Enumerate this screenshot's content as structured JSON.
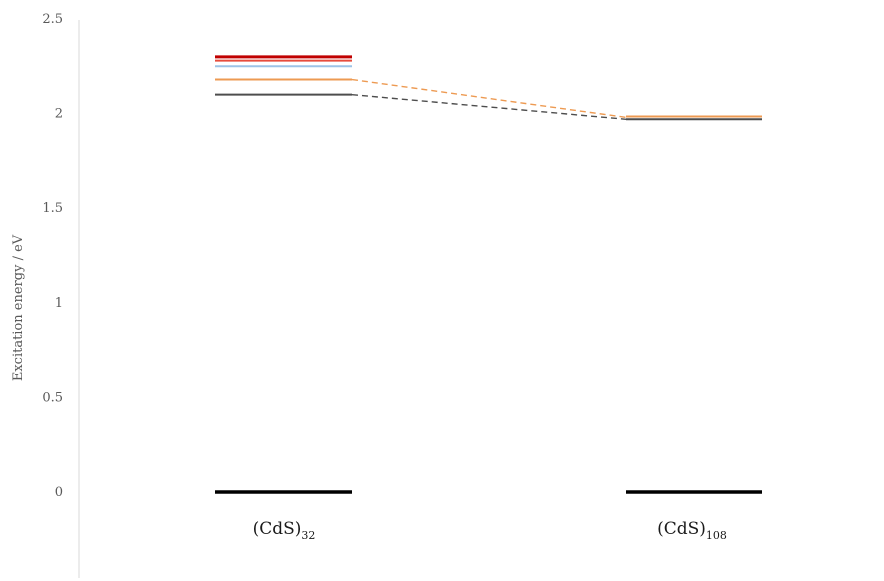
{
  "chart_data": {
    "type": "line",
    "ylabel": "Excitation energy / eV",
    "ylim": [
      0,
      2.5
    ],
    "yticks": [
      "0",
      "0.5",
      "1",
      "1.5",
      "2",
      "2.5"
    ],
    "grid": false,
    "categories": [
      {
        "main": "(CdS)",
        "sub": "32"
      },
      {
        "main": "(CdS)",
        "sub": "108"
      }
    ],
    "ground_state": {
      "value": 0,
      "color": "#000000"
    },
    "levels": [
      {
        "category": 0,
        "value": 2.3,
        "color": "#c00000"
      },
      {
        "category": 0,
        "value": 2.28,
        "color": "#e74c3c"
      },
      {
        "category": 0,
        "value": 2.25,
        "color": "#9dc3e6"
      },
      {
        "category": 0,
        "value": 2.18,
        "color": "#ed9a52"
      },
      {
        "category": 0,
        "value": 2.1,
        "color": "#4d4d4d"
      },
      {
        "category": 1,
        "value": 1.985,
        "color": "#ed9a52"
      },
      {
        "category": 1,
        "value": 1.97,
        "color": "#4d4d4d"
      }
    ],
    "connectors": [
      {
        "from": 2.18,
        "to": 1.98,
        "color": "#ed9a52"
      },
      {
        "from": 2.1,
        "to": 1.97,
        "color": "#4d4d4d"
      }
    ]
  }
}
